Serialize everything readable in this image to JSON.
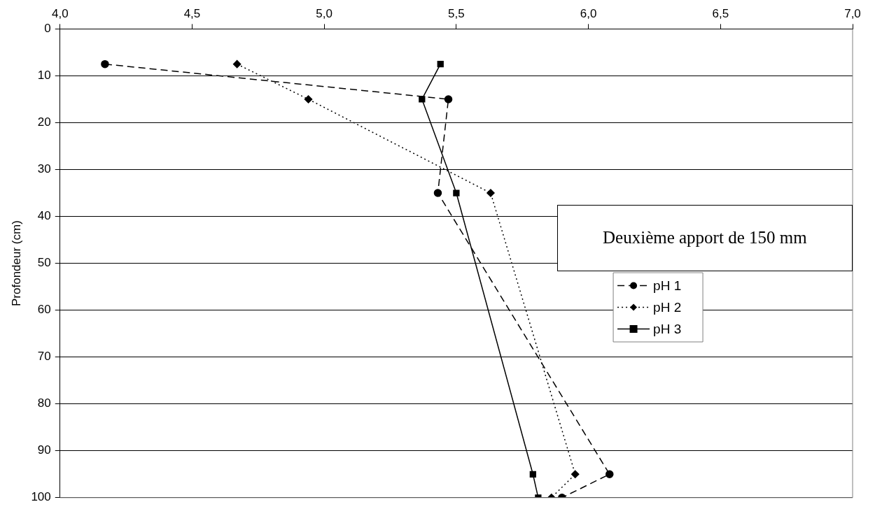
{
  "chart_data": {
    "type": "line",
    "ylabel": "Profondeur (cm)",
    "annotations": [
      "Deuxième apport de 150 mm"
    ],
    "series": [
      {
        "name": "pH 1",
        "color": "#000000",
        "marker": "circle",
        "line_style": "dashed",
        "x": [
          4.17,
          5.47,
          5.43,
          6.08,
          5.9
        ],
        "values": [
          7.5,
          15,
          35,
          95,
          100
        ]
      },
      {
        "name": "pH 2",
        "color": "#000000",
        "marker": "diamond",
        "line_style": "dotted",
        "x": [
          4.67,
          4.94,
          5.63,
          5.95,
          5.86
        ],
        "values": [
          7.5,
          15,
          35,
          95,
          100
        ]
      },
      {
        "name": "pH 3",
        "color": "#000000",
        "marker": "square",
        "line_style": "solid",
        "x": [
          5.44,
          5.37,
          5.5,
          5.79,
          5.81
        ],
        "values": [
          7.5,
          15,
          35,
          95,
          100
        ]
      }
    ],
    "xlim": [
      4,
      7
    ],
    "xticks": [
      {
        "value": 4,
        "label": "4,0"
      },
      {
        "value": 4.5,
        "label": "4,5"
      },
      {
        "value": 5,
        "label": "5,0"
      },
      {
        "value": 5.5,
        "label": "5,5"
      },
      {
        "value": 6,
        "label": "6,0"
      },
      {
        "value": 6.5,
        "label": "6,5"
      },
      {
        "value": 7,
        "label": "7,0"
      }
    ],
    "ylim": [
      100,
      0
    ],
    "yticks": [
      0,
      10,
      20,
      30,
      40,
      50,
      60,
      70,
      80,
      90,
      100
    ],
    "grid": "y",
    "legend": "right"
  }
}
